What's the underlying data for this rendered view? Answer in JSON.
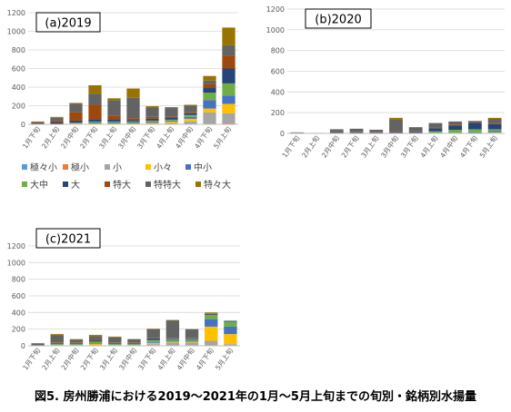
{
  "caption": "図5. 房州勝浦における2019～2021年の1月～5月上旬までの旬別・銘柄別水揚量",
  "legend": [
    {
      "label": "極々小",
      "color": "#5B9BD5"
    },
    {
      "label": "極小",
      "color": "#ED7D31"
    },
    {
      "label": "小",
      "color": "#A5A5A5"
    },
    {
      "label": "小々",
      "color": "#FFC000"
    },
    {
      "label": "中小",
      "color": "#4472C4"
    },
    {
      "label": "大中",
      "color": "#70AD47"
    },
    {
      "label": "大",
      "color": "#264478"
    },
    {
      "label": "特大",
      "color": "#9E480E"
    },
    {
      "label": "特特大",
      "color": "#636363"
    },
    {
      "label": "特々大",
      "color": "#997300"
    }
  ],
  "chart_data": [
    {
      "type": "bar",
      "title": "(a)2019",
      "categories": [
        "1月下旬",
        "2月上旬",
        "2月中旬",
        "2月下旬",
        "3月上旬",
        "3月中旬",
        "3月下旬",
        "4月上旬",
        "4月中旬",
        "4月下旬",
        "5月上旬"
      ],
      "ylim": [
        0,
        1200
      ],
      "yticks": [
        0,
        200,
        400,
        600,
        800,
        1000,
        1200
      ],
      "grid": true,
      "stacked": true,
      "series": [
        {
          "name": "極々小",
          "values": [
            0,
            0,
            0,
            0,
            0,
            0,
            0,
            0,
            0,
            0,
            0
          ]
        },
        {
          "name": "極小",
          "values": [
            0,
            0,
            0,
            0,
            0,
            0,
            0,
            0,
            0,
            0,
            10
          ]
        },
        {
          "name": "小",
          "values": [
            0,
            0,
            5,
            5,
            5,
            5,
            5,
            15,
            30,
            130,
            110
          ]
        },
        {
          "name": "小々",
          "values": [
            0,
            0,
            5,
            5,
            5,
            5,
            10,
            15,
            30,
            40,
            100
          ]
        },
        {
          "name": "中小",
          "values": [
            0,
            0,
            5,
            10,
            10,
            10,
            10,
            10,
            20,
            90,
            90
          ]
        },
        {
          "name": "大中",
          "values": [
            0,
            0,
            5,
            10,
            10,
            10,
            15,
            10,
            20,
            80,
            130
          ]
        },
        {
          "name": "大",
          "values": [
            10,
            20,
            20,
            25,
            25,
            15,
            20,
            25,
            20,
            50,
            160
          ]
        },
        {
          "name": "特大",
          "values": [
            5,
            20,
            90,
            155,
            40,
            20,
            20,
            10,
            10,
            40,
            140
          ]
        },
        {
          "name": "特特大",
          "values": [
            10,
            30,
            90,
            120,
            165,
            220,
            100,
            90,
            70,
            40,
            110
          ]
        },
        {
          "name": "特々大",
          "values": [
            5,
            10,
            10,
            90,
            20,
            100,
            15,
            10,
            10,
            50,
            190
          ]
        }
      ]
    },
    {
      "type": "bar",
      "title": "(b)2020",
      "categories": [
        "1月下旬",
        "2月上旬",
        "2月中旬",
        "2月下旬",
        "3月上旬",
        "3月中旬",
        "3月下旬",
        "4月上旬",
        "4月中旬",
        "4月下旬",
        "5月上旬"
      ],
      "ylim": [
        0,
        1200
      ],
      "yticks": [
        0,
        200,
        400,
        600,
        800,
        1000,
        1200
      ],
      "grid": true,
      "stacked": true,
      "series": [
        {
          "name": "極々小",
          "values": [
            0,
            0,
            0,
            0,
            0,
            0,
            0,
            0,
            0,
            0,
            0
          ]
        },
        {
          "name": "極小",
          "values": [
            0,
            0,
            0,
            0,
            0,
            0,
            0,
            0,
            0,
            0,
            0
          ]
        },
        {
          "name": "小",
          "values": [
            0,
            0,
            0,
            0,
            0,
            0,
            0,
            0,
            0,
            0,
            5
          ]
        },
        {
          "name": "小々",
          "values": [
            0,
            0,
            0,
            0,
            0,
            0,
            0,
            0,
            0,
            0,
            5
          ]
        },
        {
          "name": "中小",
          "values": [
            0,
            0,
            0,
            0,
            0,
            0,
            0,
            5,
            5,
            10,
            15
          ]
        },
        {
          "name": "大中",
          "values": [
            5,
            0,
            5,
            0,
            0,
            5,
            5,
            15,
            30,
            30,
            15
          ]
        },
        {
          "name": "大",
          "values": [
            0,
            0,
            10,
            10,
            10,
            10,
            10,
            30,
            40,
            60,
            50
          ]
        },
        {
          "name": "特大",
          "values": [
            0,
            0,
            5,
            5,
            5,
            10,
            5,
            10,
            10,
            5,
            10
          ]
        },
        {
          "name": "特特大",
          "values": [
            5,
            5,
            20,
            30,
            20,
            110,
            40,
            40,
            30,
            15,
            40
          ]
        },
        {
          "name": "特々大",
          "values": [
            0,
            0,
            0,
            0,
            0,
            15,
            0,
            0,
            0,
            0,
            10
          ]
        }
      ]
    },
    {
      "type": "bar",
      "title": "(c)2021",
      "categories": [
        "1月下旬",
        "2月上旬",
        "2月中旬",
        "2月下旬",
        "3月上旬",
        "3月中旬",
        "3月下旬",
        "4月上旬",
        "4月中旬",
        "4月下旬",
        "5月上旬"
      ],
      "ylim": [
        0,
        1200
      ],
      "yticks": [
        0,
        200,
        400,
        600,
        800,
        1000,
        1200
      ],
      "grid": true,
      "stacked": true,
      "series": [
        {
          "name": "極々小",
          "values": [
            0,
            0,
            0,
            0,
            0,
            0,
            0,
            0,
            0,
            0,
            0
          ]
        },
        {
          "name": "極小",
          "values": [
            0,
            0,
            0,
            0,
            0,
            0,
            0,
            0,
            0,
            0,
            0
          ]
        },
        {
          "name": "小",
          "values": [
            0,
            5,
            5,
            10,
            5,
            5,
            20,
            40,
            40,
            60,
            20
          ]
        },
        {
          "name": "小々",
          "values": [
            0,
            5,
            5,
            10,
            5,
            5,
            15,
            10,
            10,
            170,
            120
          ]
        },
        {
          "name": "中小",
          "values": [
            0,
            5,
            5,
            10,
            5,
            5,
            10,
            10,
            10,
            90,
            90
          ]
        },
        {
          "name": "大中",
          "values": [
            5,
            10,
            10,
            20,
            10,
            10,
            25,
            20,
            20,
            50,
            60
          ]
        },
        {
          "name": "大",
          "values": [
            5,
            10,
            10,
            10,
            10,
            10,
            20,
            10,
            10,
            10,
            10
          ]
        },
        {
          "name": "特大",
          "values": [
            0,
            5,
            5,
            5,
            5,
            5,
            5,
            5,
            5,
            5,
            0
          ]
        },
        {
          "name": "特特大",
          "values": [
            20,
            90,
            35,
            50,
            60,
            40,
            105,
            210,
            105,
            5,
            0
          ]
        },
        {
          "name": "特々大",
          "values": [
            0,
            10,
            5,
            15,
            10,
            0,
            5,
            5,
            0,
            10,
            0
          ]
        }
      ]
    }
  ]
}
